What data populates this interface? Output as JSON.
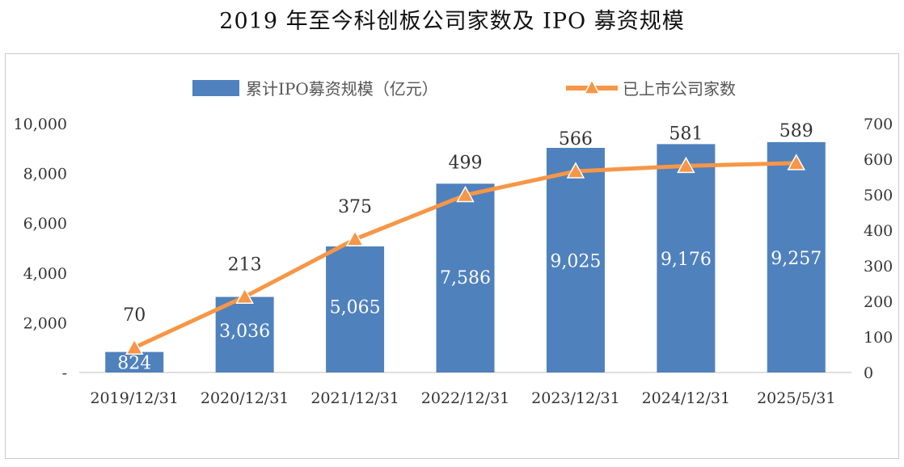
{
  "title": "2019 年至今科创板公司家数及 IPO 募资规模",
  "colors": {
    "bar": "#4f81bd",
    "line": "#f79646",
    "marker_stroke": "#ffffff"
  },
  "chart_data": {
    "type": "bar",
    "title": "2019 年至今科创板公司家数及 IPO 募资规模",
    "categories": [
      "2019/12/31",
      "2020/12/31",
      "2021/12/31",
      "2022/12/31",
      "2023/12/31",
      "2024/12/31",
      "2025/5/31"
    ],
    "series": [
      {
        "name": "累计IPO募资规模（亿元）",
        "type": "bar",
        "axis": "left",
        "values": [
          824,
          3036,
          5065,
          7586,
          9025,
          9176,
          9257
        ],
        "labels": [
          "824",
          "3,036",
          "5,065",
          "7,586",
          "9,025",
          "9,176",
          "9,257"
        ]
      },
      {
        "name": "已上市公司家数",
        "type": "line",
        "marker": "triangle",
        "axis": "right",
        "values": [
          70,
          213,
          375,
          499,
          566,
          581,
          589
        ],
        "labels": [
          "70",
          "213",
          "375",
          "499",
          "566",
          "581",
          "589"
        ]
      }
    ],
    "y_left": {
      "min": 0,
      "max": 10000,
      "ticks": [
        "-",
        "2,000",
        "4,000",
        "6,000",
        "8,000",
        "10,000"
      ],
      "tick_values": [
        0,
        2000,
        4000,
        6000,
        8000,
        10000
      ]
    },
    "y_right": {
      "min": 0,
      "max": 700,
      "ticks": [
        "0",
        "100",
        "200",
        "300",
        "400",
        "500",
        "600",
        "700"
      ],
      "tick_values": [
        0,
        100,
        200,
        300,
        400,
        500,
        600,
        700
      ]
    },
    "grid": false,
    "legend_position": "top"
  }
}
